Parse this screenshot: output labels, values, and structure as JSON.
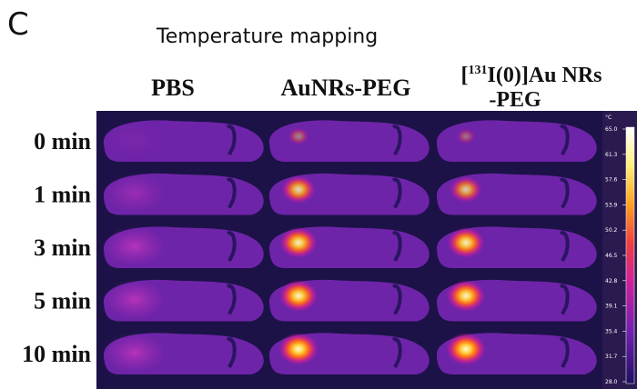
{
  "panel_label": "C",
  "title": "Temperature mapping",
  "columns": [
    {
      "label": "PBS"
    },
    {
      "label": "AuNRs-PEG"
    },
    {
      "label_prefix": "[",
      "label_sup": "131",
      "label_rest": "I(0)]Au NRs",
      "label_line2": "-PEG"
    }
  ],
  "rows": [
    "0 min",
    "1 min",
    "3 min",
    "5 min",
    "10 min"
  ],
  "colorbar": {
    "unit": "°C",
    "ticks": [
      "65.0",
      "61.3",
      "57.6",
      "53.9",
      "50.2",
      "46.5",
      "42.8",
      "39.1",
      "35.4",
      "31.7",
      "28.0"
    ]
  }
}
